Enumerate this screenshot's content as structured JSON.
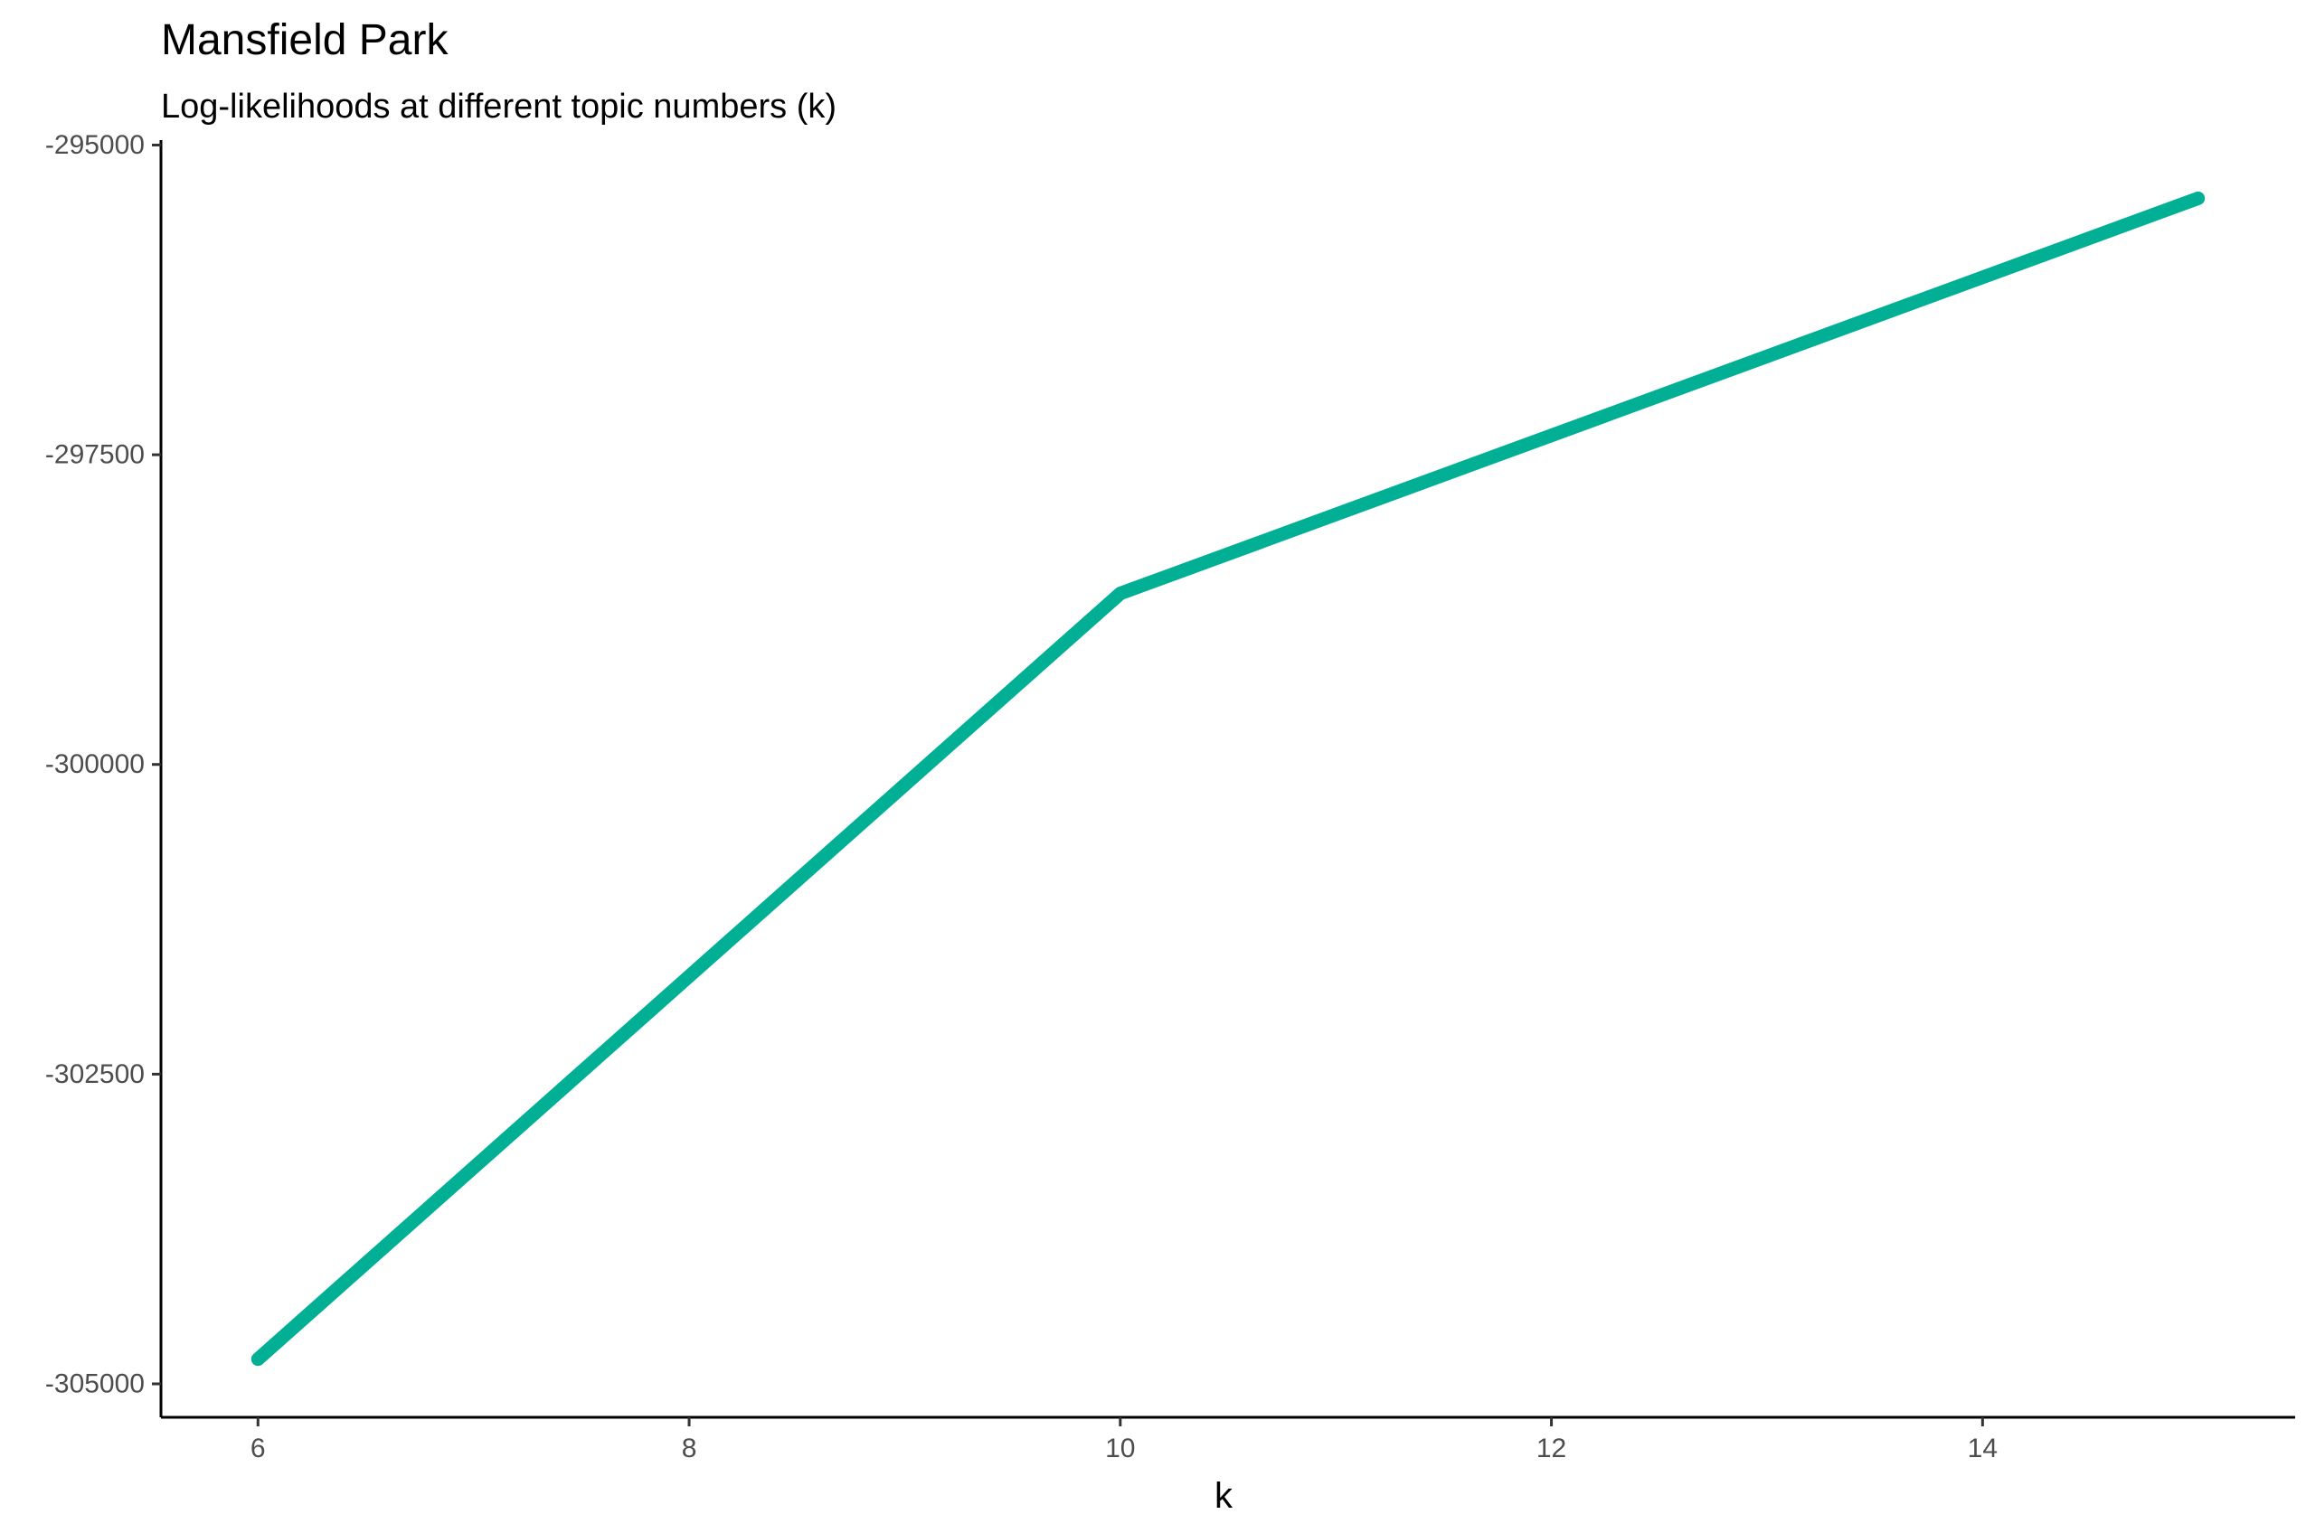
{
  "chart_data": {
    "type": "line",
    "title": "Mansfield Park",
    "subtitle": "Log-likelihoods at different topic numbers (k)",
    "xlabel": "k",
    "ylabel": "",
    "x": [
      6,
      10,
      15
    ],
    "series": [
      {
        "values": [
          -304800,
          -298620,
          -295430
        ],
        "color": "#00AF94"
      }
    ],
    "xlim": [
      5.55,
      15.45
    ],
    "ylim": [
      -305270,
      -294960
    ],
    "x_ticks": [
      6,
      8,
      10,
      12,
      14
    ],
    "x_tick_labels": [
      "6",
      "8",
      "10",
      "12",
      "14"
    ],
    "y_ticks": [
      -295000,
      -297500,
      -300000,
      -302500,
      -305000
    ],
    "y_tick_labels": [
      "-295000",
      "-297500",
      "-300000",
      "-302500",
      "-305000"
    ],
    "grid": false,
    "legend": "none"
  }
}
